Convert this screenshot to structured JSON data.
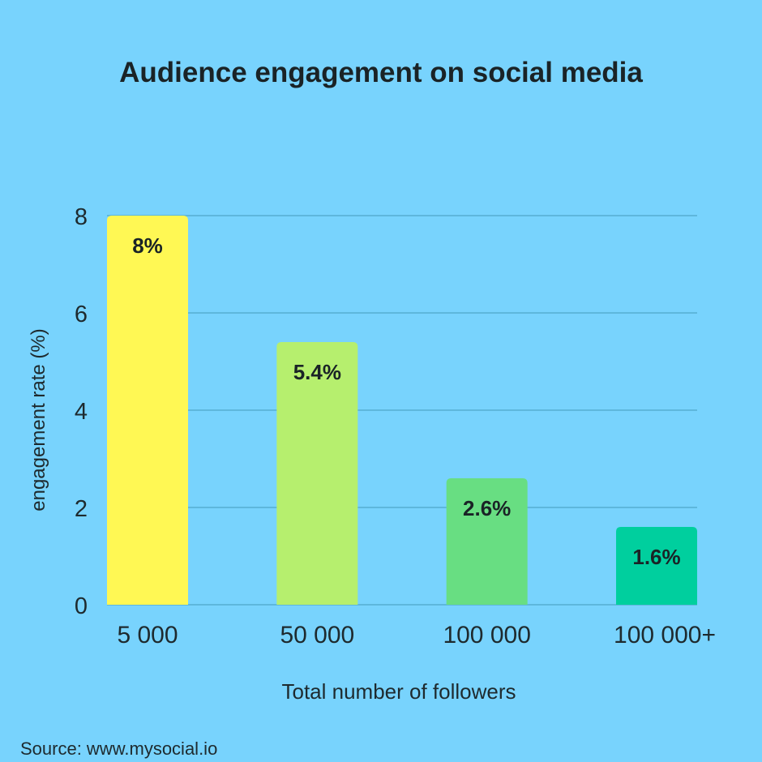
{
  "chart_data": {
    "type": "bar",
    "title": "Audience engagement on social media",
    "xlabel": "Total number of followers",
    "ylabel": "engagement rate (%)",
    "categories": [
      "5 000",
      "50 000",
      "100 000",
      "100 000+"
    ],
    "values": [
      8,
      5.4,
      2.6,
      1.6
    ],
    "data_labels": [
      "8%",
      "5.4%",
      "2.6%",
      "1.6%"
    ],
    "colors": [
      "#fff854",
      "#b6ef6e",
      "#68de82",
      "#00cf9e"
    ],
    "ylim": [
      0,
      8
    ],
    "yticks": [
      0,
      2,
      4,
      6,
      8
    ],
    "ytick_labels": [
      "0",
      "2",
      "4",
      "6",
      "8"
    ],
    "grid": true,
    "legend": "none"
  },
  "source": "Source: www.mysocial.io"
}
